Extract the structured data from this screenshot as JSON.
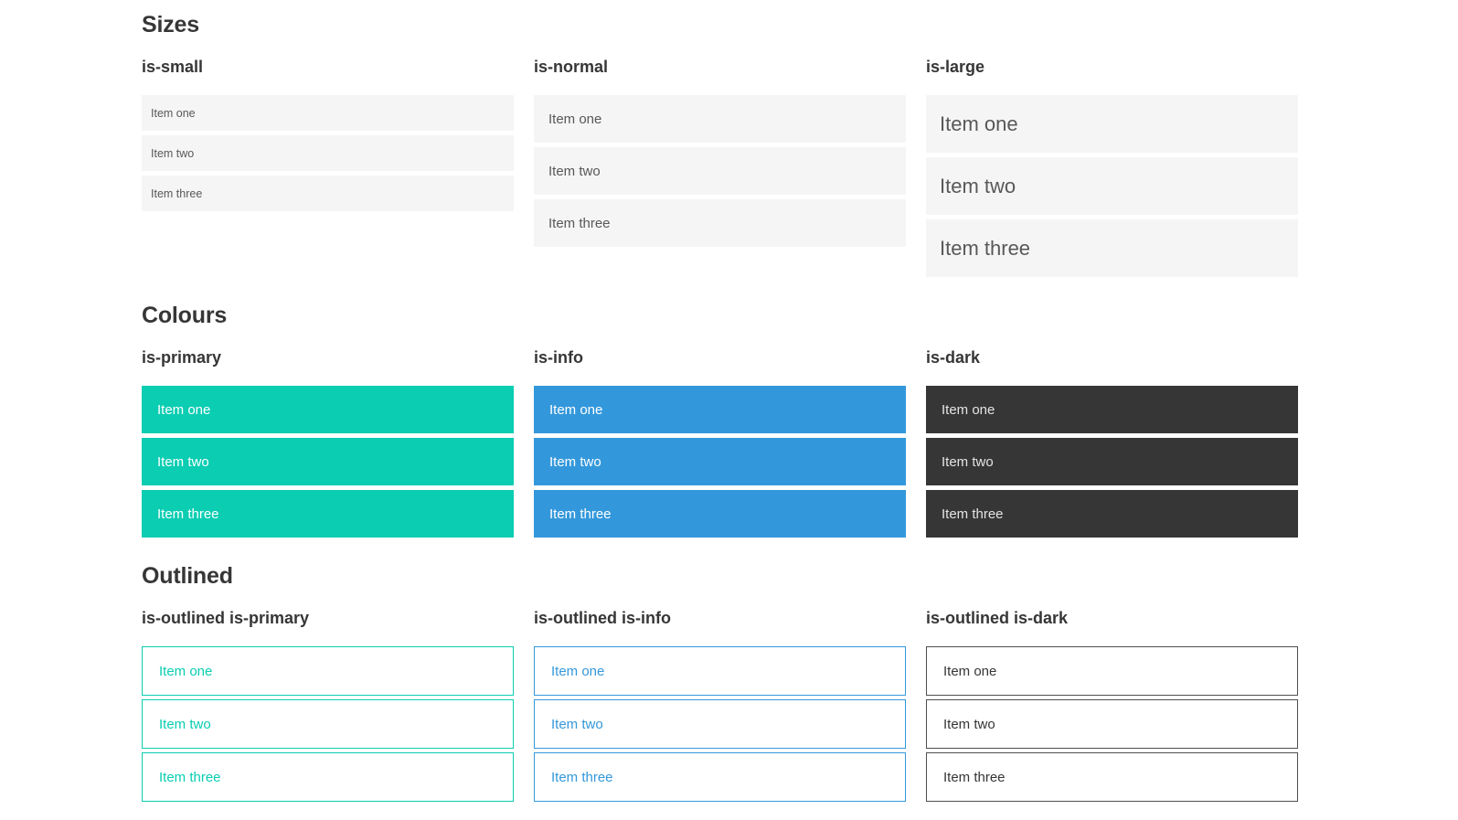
{
  "colors": {
    "primary": "#0acdb2",
    "info": "#3398db",
    "dark": "#363636",
    "item_bg": "#f5f5f5",
    "item_text": "#585858",
    "heading": "#363636",
    "outlined_dark_border": "#4f4f4f"
  },
  "sections": [
    {
      "title": "Sizes",
      "groups": [
        {
          "label": "is-small",
          "items": [
            "Item one",
            "Item two",
            "Item three"
          ]
        },
        {
          "label": "is-normal",
          "items": [
            "Item one",
            "Item two",
            "Item three"
          ]
        },
        {
          "label": "is-large",
          "items": [
            "Item one",
            "Item two",
            "Item three"
          ]
        }
      ]
    },
    {
      "title": "Colours",
      "groups": [
        {
          "label": "is-primary",
          "items": [
            "Item one",
            "Item two",
            "Item three"
          ]
        },
        {
          "label": "is-info",
          "items": [
            "Item one",
            "Item two",
            "Item three"
          ]
        },
        {
          "label": "is-dark",
          "items": [
            "Item one",
            "Item two",
            "Item three"
          ]
        }
      ]
    },
    {
      "title": "Outlined",
      "groups": [
        {
          "label": "is-outlined is-primary",
          "items": [
            "Item one",
            "Item two",
            "Item three"
          ]
        },
        {
          "label": "is-outlined is-info",
          "items": [
            "Item one",
            "Item two",
            "Item three"
          ]
        },
        {
          "label": "is-outlined is-dark",
          "items": [
            "Item one",
            "Item two",
            "Item three"
          ]
        }
      ]
    }
  ]
}
